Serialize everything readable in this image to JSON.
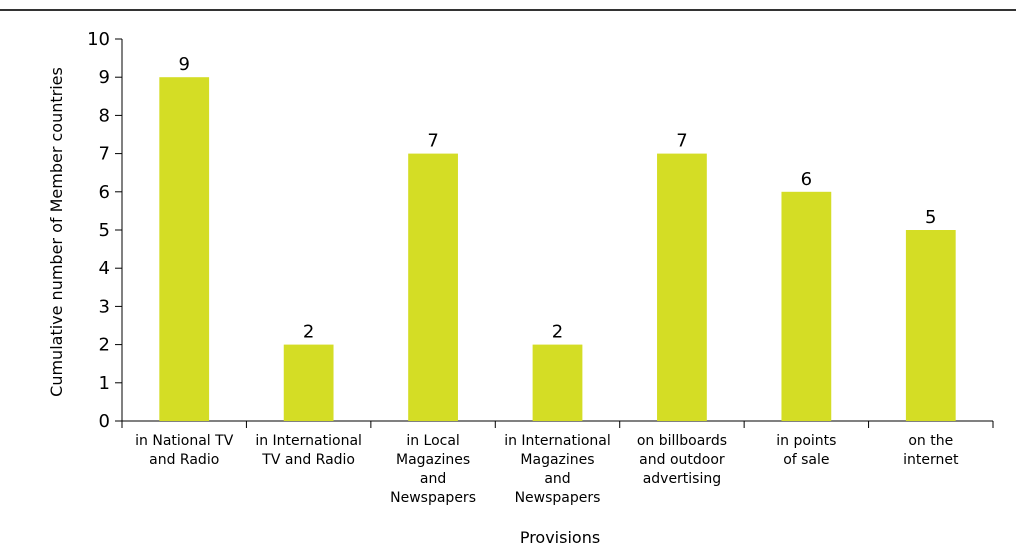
{
  "chart_data": {
    "type": "bar",
    "title": "",
    "xlabel": "Provisions",
    "ylabel": "Cumulative number of Member countries",
    "ylim": [
      0,
      10
    ],
    "yticks": [
      0,
      1,
      2,
      3,
      4,
      5,
      6,
      7,
      8,
      9,
      10
    ],
    "categories": [
      "in National TV and Radio",
      "in International TV and Radio",
      "in Local Magazines and Newspapers",
      "in International Magazines and Newspapers",
      "on billboards and outdoor advertising",
      "in points of sale",
      "on the internet"
    ],
    "category_lines": [
      [
        "in National TV",
        "and Radio"
      ],
      [
        "in International",
        "TV and Radio"
      ],
      [
        "in Local",
        "Magazines",
        "and",
        "Newspapers"
      ],
      [
        "in International",
        "Magazines",
        "and",
        "Newspapers"
      ],
      [
        "on billboards",
        "and outdoor",
        "advertising"
      ],
      [
        "in points",
        "of sale"
      ],
      [
        "on the",
        "internet"
      ]
    ],
    "values": [
      9,
      2,
      7,
      2,
      7,
      6,
      5
    ],
    "data_labels": [
      "9",
      "2",
      "7",
      "2",
      "7",
      "6",
      "5"
    ],
    "bar_color": "#d4dd25",
    "grid": false,
    "legend": "none"
  }
}
